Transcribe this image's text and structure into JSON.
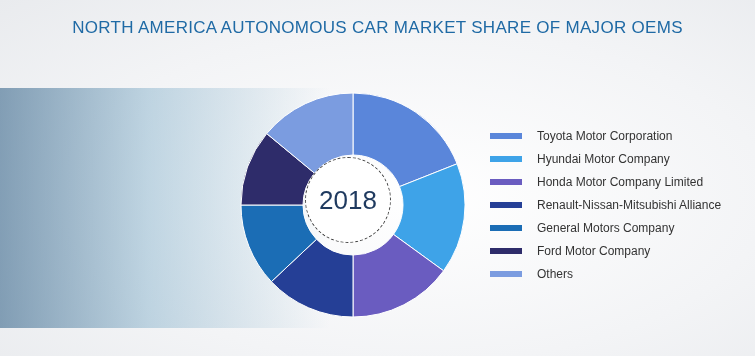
{
  "chart_data": {
    "type": "pie",
    "title": "NORTH AMERICA AUTONOMOUS CAR MARKET SHARE OF MAJOR OEMS",
    "annotations": [
      "2018"
    ],
    "categories": [
      "Toyota Motor Corporation",
      "Hyundai Motor Company",
      "Honda Motor Company Limited",
      "Renault-Nissan-Mitsubishi Alliance",
      "General Motors Company",
      "Ford Motor Company",
      "Others"
    ],
    "values": [
      19,
      16,
      15,
      13,
      12,
      11,
      14
    ],
    "colors": [
      "#5a86da",
      "#3ea3e8",
      "#6a5cc0",
      "#253f96",
      "#1b6db5",
      "#2e2c6a",
      "#7b9ce0"
    ],
    "legend": "right"
  }
}
